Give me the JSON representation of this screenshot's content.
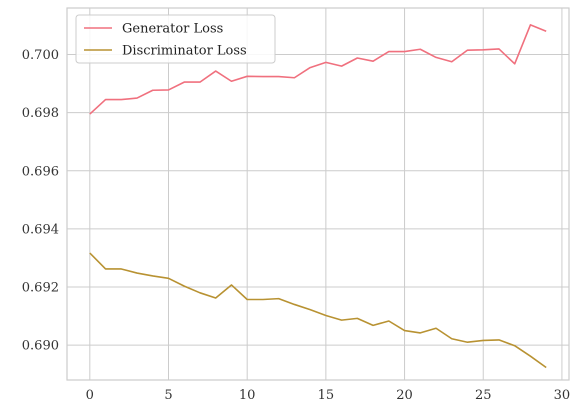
{
  "chart_data": {
    "type": "line",
    "title": "",
    "xlabel": "",
    "ylabel": "",
    "xlim": [
      -1.45,
      30.45
    ],
    "ylim": [
      0.6888,
      0.7016
    ],
    "xticks": [
      0,
      5,
      10,
      15,
      20,
      25,
      30
    ],
    "xtick_labels": [
      "0",
      "5",
      "10",
      "15",
      "20",
      "25",
      "30"
    ],
    "yticks": [
      0.69,
      0.692,
      0.694,
      0.696,
      0.698,
      0.7
    ],
    "ytick_labels": [
      "0.690",
      "0.692",
      "0.694",
      "0.696",
      "0.698",
      "0.700"
    ],
    "grid": true,
    "legend_position": "upper-left",
    "x": [
      0,
      1,
      2,
      3,
      4,
      5,
      6,
      7,
      8,
      9,
      10,
      11,
      12,
      13,
      14,
      15,
      16,
      17,
      18,
      19,
      20,
      21,
      22,
      23,
      24,
      25,
      26,
      27,
      28,
      29
    ],
    "series": [
      {
        "name": "Generator Loss",
        "color": "#f0707e",
        "values": [
          0.69795,
          0.69845,
          0.69845,
          0.6985,
          0.69877,
          0.69878,
          0.69905,
          0.69905,
          0.69943,
          0.69908,
          0.69925,
          0.69924,
          0.69924,
          0.6992,
          0.69955,
          0.69973,
          0.6996,
          0.69988,
          0.69977,
          0.7001,
          0.7001,
          0.70018,
          0.6999,
          0.69975,
          0.70015,
          0.70016,
          0.70019,
          0.69968,
          0.70102,
          0.7008
        ]
      },
      {
        "name": "Discriminator Loss",
        "color": "#b89232",
        "values": [
          0.69317,
          0.69262,
          0.69262,
          0.69248,
          0.69238,
          0.6923,
          0.69203,
          0.6918,
          0.69162,
          0.69207,
          0.69157,
          0.69157,
          0.6916,
          0.6914,
          0.69122,
          0.69102,
          0.69086,
          0.69092,
          0.69068,
          0.69083,
          0.6905,
          0.69042,
          0.69058,
          0.69022,
          0.6901,
          0.69016,
          0.69018,
          0.68998,
          0.68962,
          0.68923
        ]
      }
    ]
  }
}
